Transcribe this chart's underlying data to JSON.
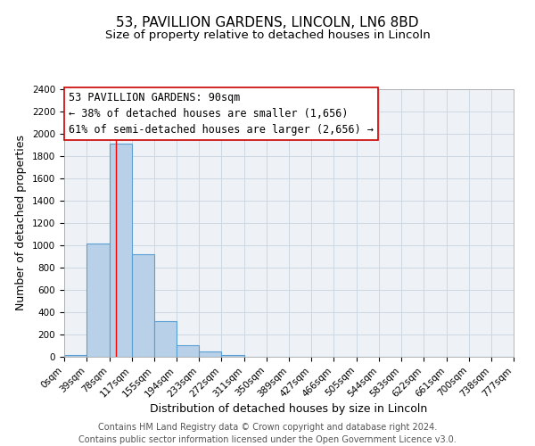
{
  "title": "53, PAVILLION GARDENS, LINCOLN, LN6 8BD",
  "subtitle": "Size of property relative to detached houses in Lincoln",
  "xlabel": "Distribution of detached houses by size in Lincoln",
  "ylabel": "Number of detached properties",
  "bin_edges": [
    0,
    39,
    78,
    117,
    155,
    194,
    233,
    272,
    311,
    350,
    389,
    427,
    466,
    505,
    544,
    583,
    622,
    661,
    700,
    738,
    777
  ],
  "bin_labels": [
    "0sqm",
    "39sqm",
    "78sqm",
    "117sqm",
    "155sqm",
    "194sqm",
    "233sqm",
    "272sqm",
    "311sqm",
    "350sqm",
    "389sqm",
    "427sqm",
    "466sqm",
    "505sqm",
    "544sqm",
    "583sqm",
    "622sqm",
    "661sqm",
    "700sqm",
    "738sqm",
    "777sqm"
  ],
  "bar_heights": [
    20,
    1020,
    1910,
    920,
    320,
    105,
    50,
    20,
    0,
    0,
    0,
    0,
    0,
    0,
    0,
    0,
    0,
    0,
    0,
    0
  ],
  "bar_color": "#b8d0e8",
  "bar_edge_color": "#5a9fd4",
  "bar_edge_width": 0.8,
  "red_line_x": 90,
  "ylim": [
    0,
    2400
  ],
  "yticks": [
    0,
    200,
    400,
    600,
    800,
    1000,
    1200,
    1400,
    1600,
    1800,
    2000,
    2200,
    2400
  ],
  "annotation_line1": "53 PAVILLION GARDENS: 90sqm",
  "annotation_line2": "← 38% of detached houses are smaller (1,656)",
  "annotation_line3": "61% of semi-detached houses are larger (2,656) →",
  "footer_line1": "Contains HM Land Registry data © Crown copyright and database right 2024.",
  "footer_line2": "Contains public sector information licensed under the Open Government Licence v3.0.",
  "background_color": "#eef2f7",
  "grid_color": "#c8d4e0",
  "title_fontsize": 11,
  "subtitle_fontsize": 9.5,
  "axis_label_fontsize": 9,
  "tick_fontsize": 7.5,
  "annotation_fontsize": 8.5,
  "footer_fontsize": 7
}
